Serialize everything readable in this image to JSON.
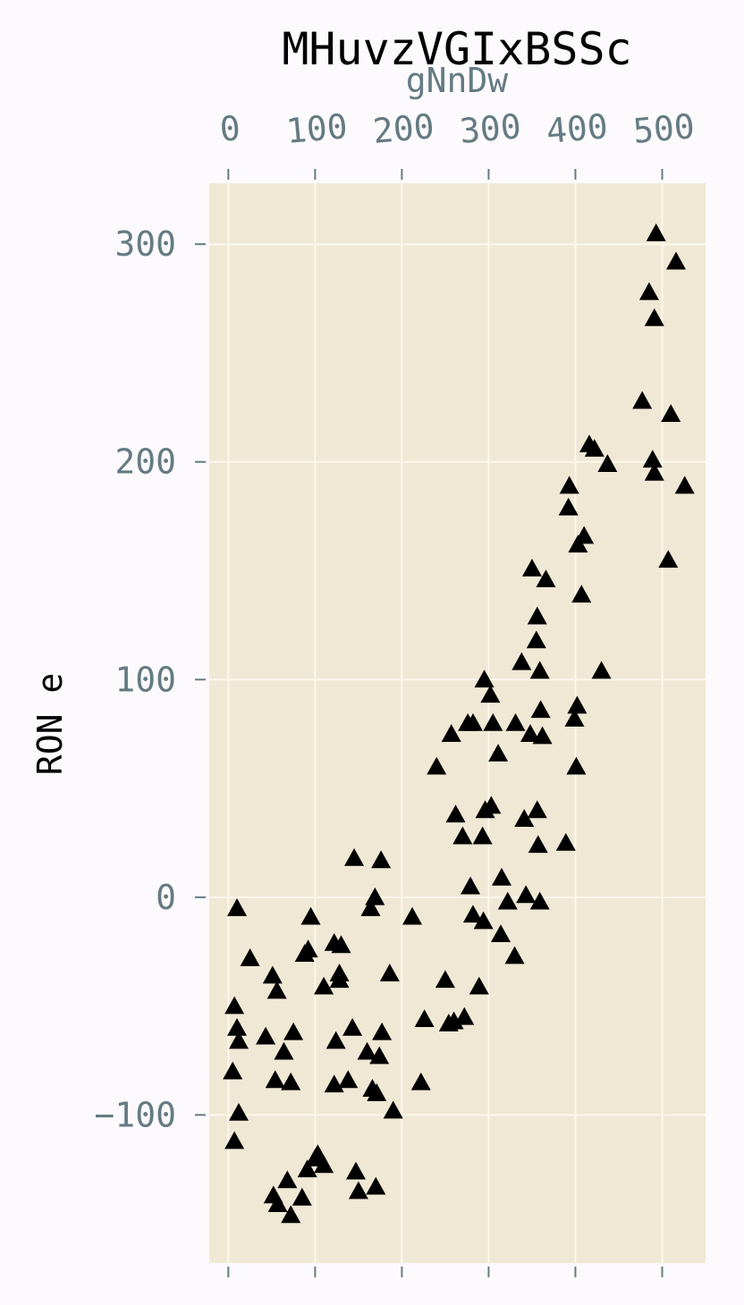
{
  "chart_data": {
    "type": "scatter",
    "title": "MHuvzVGIxBSSc",
    "xlabel": "gNnDw",
    "ylabel": "RON e",
    "xaxis_position": "top",
    "x_ticks": [
      0,
      100,
      200,
      300,
      400,
      500
    ],
    "x_tick_labels": [
      "0",
      "100",
      "200",
      "300",
      "400",
      "500"
    ],
    "y_ticks": [
      -100,
      0,
      100,
      200,
      300
    ],
    "y_tick_labels": [
      "−100",
      "0",
      "100",
      "200",
      "300"
    ],
    "xlim": [
      -22,
      550
    ],
    "ylim": [
      -168,
      328
    ],
    "grid": true,
    "marker": "triangle-up",
    "colors": {
      "page_background": "#fdfafd",
      "plot_background": "#efe8d5",
      "grid": "#fbf7ea",
      "tick_text": "#657b83",
      "title_text": "#000000",
      "marker": "#000000"
    },
    "series": [
      {
        "name": "points",
        "points": [
          [
            10,
            -5
          ],
          [
            7,
            -50
          ],
          [
            10,
            -60
          ],
          [
            12,
            -66
          ],
          [
            5,
            -80
          ],
          [
            12,
            -99
          ],
          [
            7,
            -112
          ],
          [
            25,
            -28
          ],
          [
            43,
            -64
          ],
          [
            51,
            -36
          ],
          [
            56,
            -43
          ],
          [
            64,
            -71
          ],
          [
            54,
            -84
          ],
          [
            72,
            -85
          ],
          [
            75,
            -62
          ],
          [
            95,
            -9
          ],
          [
            92,
            -24
          ],
          [
            88,
            -26
          ],
          [
            130,
            -22
          ],
          [
            122,
            -21
          ],
          [
            128,
            -35
          ],
          [
            128,
            -38
          ],
          [
            110,
            -41
          ],
          [
            124,
            -66
          ],
          [
            122,
            -86
          ],
          [
            138,
            -84
          ],
          [
            143,
            -60
          ],
          [
            145,
            18
          ],
          [
            176,
            17
          ],
          [
            169,
            0
          ],
          [
            164,
            -5
          ],
          [
            160,
            -71
          ],
          [
            174,
            -73
          ],
          [
            177,
            -62
          ],
          [
            166,
            -88
          ],
          [
            171,
            -90
          ],
          [
            190,
            -98
          ],
          [
            186,
            -35
          ],
          [
            212,
            -9
          ],
          [
            226,
            -56
          ],
          [
            222,
            -85
          ],
          [
            52,
            -137
          ],
          [
            57,
            -141
          ],
          [
            68,
            -130
          ],
          [
            72,
            -146
          ],
          [
            85,
            -138
          ],
          [
            91,
            -125
          ],
          [
            103,
            -118
          ],
          [
            110,
            -123
          ],
          [
            100,
            -120
          ],
          [
            147,
            -126
          ],
          [
            150,
            -135
          ],
          [
            170,
            -133
          ],
          [
            240,
            60
          ],
          [
            257,
            75
          ],
          [
            262,
            38
          ],
          [
            270,
            28
          ],
          [
            250,
            -38
          ],
          [
            254,
            -58
          ],
          [
            260,
            -57
          ],
          [
            272,
            -55
          ],
          [
            279,
            5
          ],
          [
            282,
            -8
          ],
          [
            289,
            -41
          ],
          [
            276,
            80
          ],
          [
            282,
            80
          ],
          [
            295,
            100
          ],
          [
            302,
            93
          ],
          [
            305,
            80
          ],
          [
            293,
            28
          ],
          [
            296,
            40
          ],
          [
            303,
            42
          ],
          [
            294,
            -11
          ],
          [
            311,
            66
          ],
          [
            315,
            9
          ],
          [
            314,
            -17
          ],
          [
            322,
            -2
          ],
          [
            330,
            -27
          ],
          [
            331,
            80
          ],
          [
            338,
            108
          ],
          [
            341,
            36
          ],
          [
            343,
            1
          ],
          [
            348,
            75
          ],
          [
            350,
            151
          ],
          [
            356,
            129
          ],
          [
            355,
            118
          ],
          [
            359,
            104
          ],
          [
            360,
            86
          ],
          [
            362,
            74
          ],
          [
            366,
            146
          ],
          [
            356,
            40
          ],
          [
            357,
            24
          ],
          [
            359,
            -2
          ],
          [
            389,
            25
          ],
          [
            393,
            189
          ],
          [
            392,
            179
          ],
          [
            403,
            162
          ],
          [
            410,
            166
          ],
          [
            407,
            139
          ],
          [
            402,
            88
          ],
          [
            399,
            82
          ],
          [
            401,
            60
          ],
          [
            416,
            208
          ],
          [
            422,
            206
          ],
          [
            437,
            199
          ],
          [
            430,
            104
          ],
          [
            477,
            228
          ],
          [
            485,
            278
          ],
          [
            489,
            201
          ],
          [
            491,
            266
          ],
          [
            491,
            195
          ],
          [
            493,
            305
          ],
          [
            507,
            155
          ],
          [
            510,
            222
          ],
          [
            516,
            292
          ],
          [
            526,
            189
          ]
        ]
      }
    ]
  }
}
